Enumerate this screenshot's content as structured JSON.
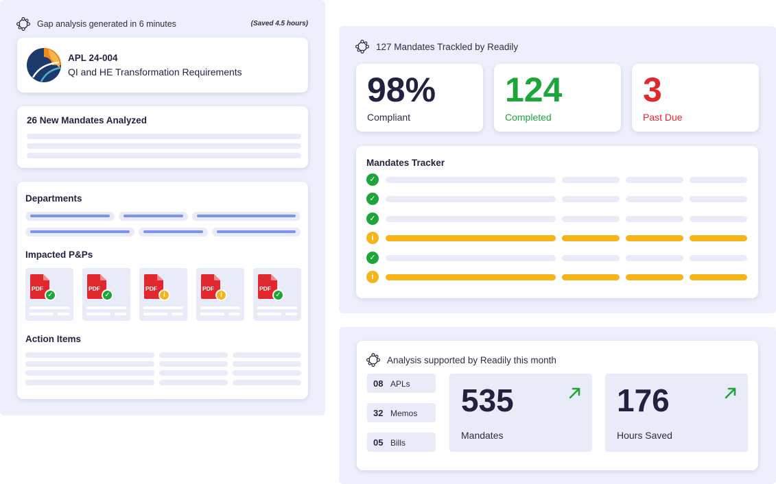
{
  "gap_analysis": {
    "header": "Gap analysis generated in 6 minutes",
    "saved": "(Saved 4.5 hours)",
    "apl": {
      "code": "APL 24-004",
      "title": "QI and HE Transformation Requirements"
    },
    "mandates_analyzed": "26 New Mandates Analyzed",
    "departments_title": "Departments",
    "impacted_title": "Impacted P&Ps",
    "pdf_label": "PDF",
    "pdfs": [
      {
        "status": "ok",
        "icon": "check-icon"
      },
      {
        "status": "ok",
        "icon": "check-icon"
      },
      {
        "status": "warn",
        "icon": "info-icon"
      },
      {
        "status": "warn",
        "icon": "info-icon"
      },
      {
        "status": "ok",
        "icon": "check-icon"
      }
    ],
    "action_items_title": "Action Items"
  },
  "mandates": {
    "header": "127 Mandates Trackled by Readily",
    "stats": [
      {
        "value": "98%",
        "label": "Compliant",
        "color": "#1f2340"
      },
      {
        "value": "124",
        "label": "Completed",
        "color": "#1ea53a"
      },
      {
        "value": "3",
        "label": "Past Due",
        "color": "#e0282e"
      }
    ],
    "tracker_title": "Mandates Tracker",
    "tracker_rows": [
      "ok",
      "ok",
      "ok",
      "warn",
      "ok",
      "warn"
    ]
  },
  "analysis": {
    "header": "Analysis supported by Readily this month",
    "counts": [
      {
        "value": "08",
        "label": "APLs"
      },
      {
        "value": "32",
        "label": "Memos"
      },
      {
        "value": "05",
        "label": "Bills"
      }
    ],
    "metrics": [
      {
        "value": "535",
        "label": "Mandates"
      },
      {
        "value": "176",
        "label": "Hours Saved"
      }
    ]
  },
  "icons": {
    "check": "✓",
    "info": "i"
  },
  "colors": {
    "accent": "#7e93ea",
    "ok": "#1ea53a",
    "warn": "#f4b41a",
    "danger": "#e0282e",
    "panel": "#edf0fc"
  }
}
